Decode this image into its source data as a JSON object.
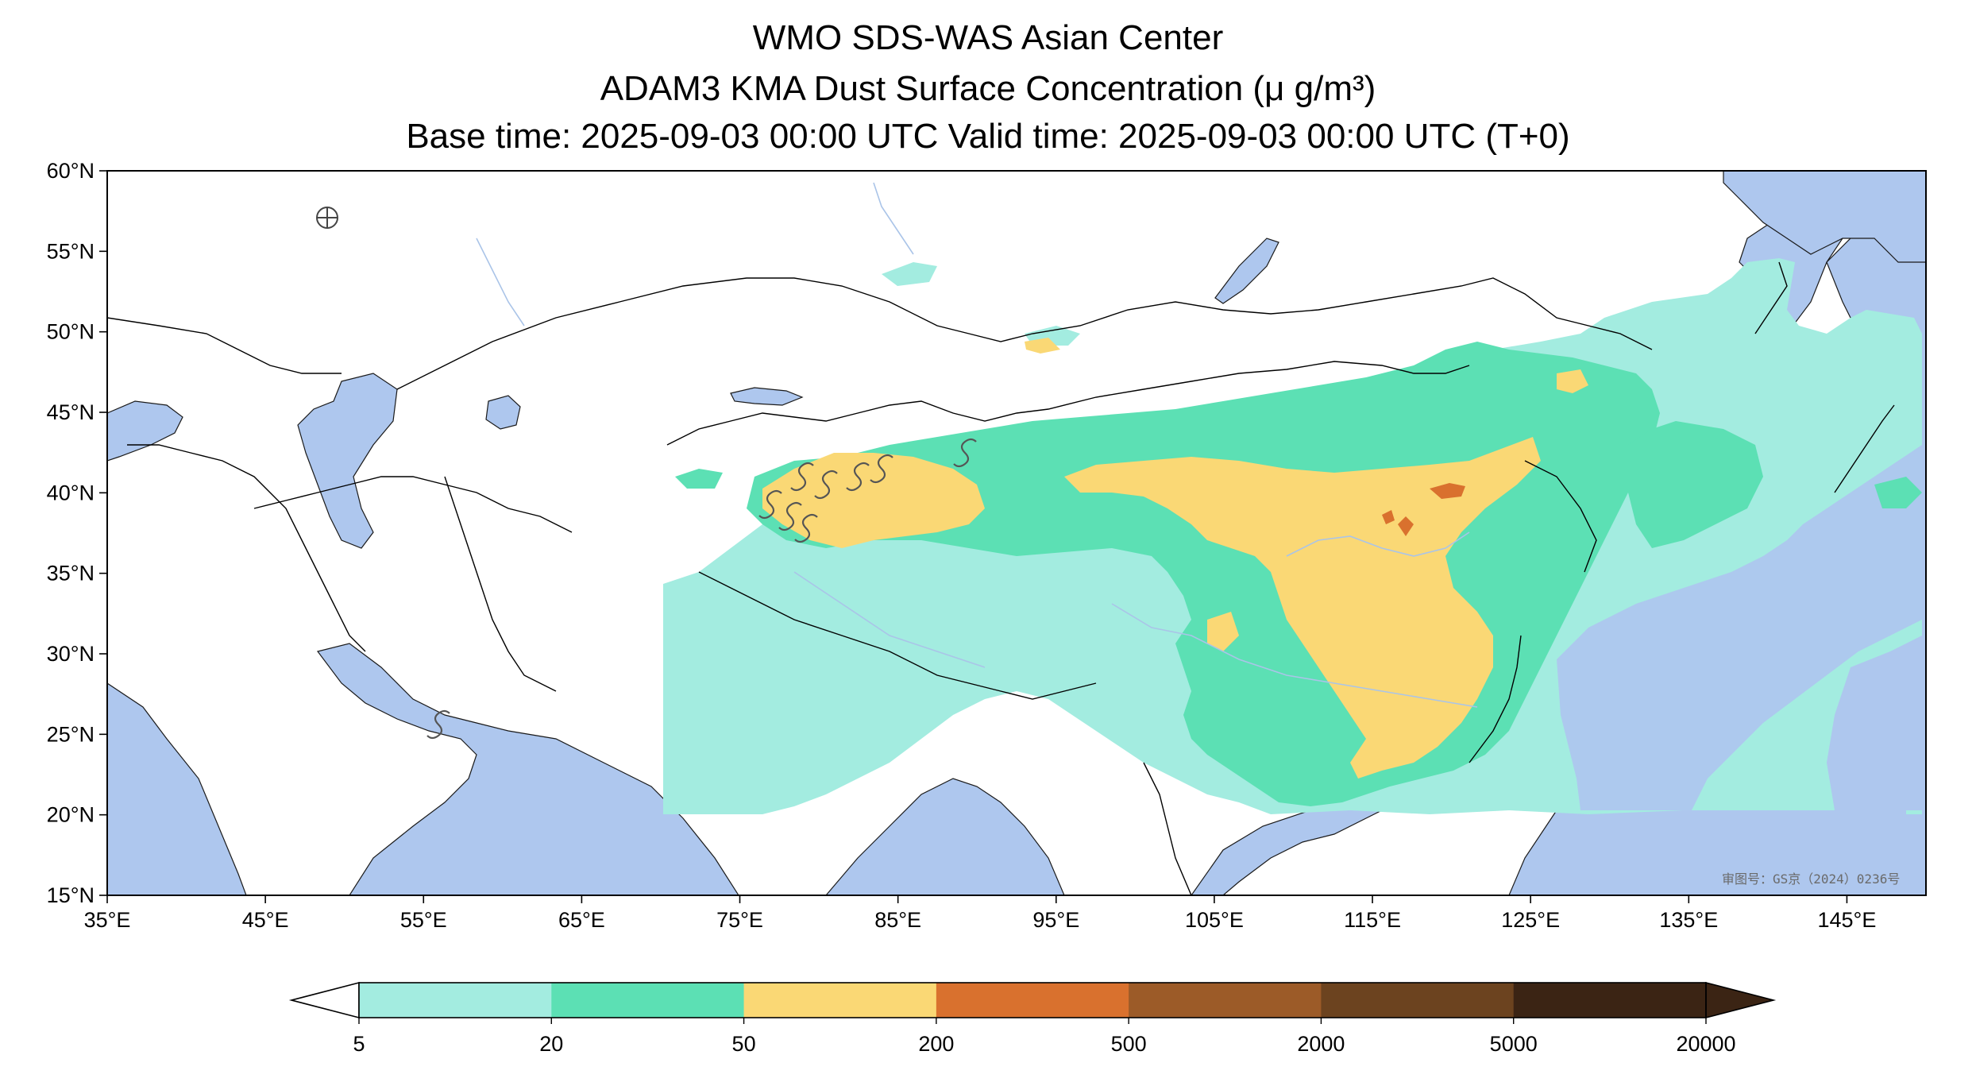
{
  "title": {
    "line1": "WMO SDS-WAS Asian Center",
    "line2": "ADAM3 KMA Dust Surface Concentration (μ g/m³)",
    "line3": "Base time: 2025-09-03 00:00 UTC Valid time: 2025-09-03 00:00 UTC (T+0)"
  },
  "map": {
    "lon_range": [
      35,
      150
    ],
    "lat_range": [
      15,
      60
    ],
    "lon_ticks": [
      "35°E",
      "45°E",
      "55°E",
      "65°E",
      "75°E",
      "85°E",
      "95°E",
      "105°E",
      "115°E",
      "125°E",
      "135°E",
      "145°E"
    ],
    "lat_ticks": [
      "60°N",
      "55°N",
      "50°N",
      "45°N",
      "40°N",
      "35°N",
      "30°N",
      "25°N",
      "20°N",
      "15°N"
    ],
    "watermark": "审图号：GS京（2024）0236号",
    "colors": {
      "water": "#aec7ee",
      "land": "#ffffff",
      "coast": "#000000",
      "river": "#aac4e8"
    }
  },
  "colorbar": {
    "labels": [
      "5",
      "20",
      "50",
      "200",
      "500",
      "2000",
      "5000",
      "20000"
    ],
    "colors": [
      "#a3ece0",
      "#5ce0b4",
      "#fad875",
      "#d9712e",
      "#9c5b28",
      "#6c431f",
      "#3b2414"
    ]
  }
}
